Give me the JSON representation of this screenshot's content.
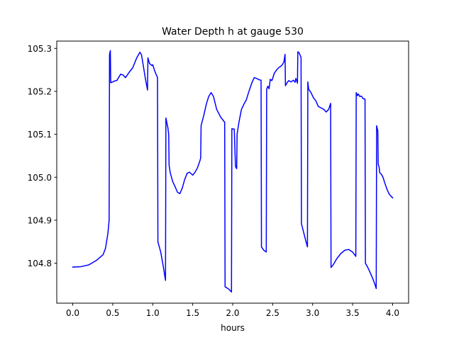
{
  "chart_data": {
    "type": "line",
    "title": "Water Depth h at gauge 530",
    "xlabel": "hours",
    "ylabel": "",
    "xlim": [
      -0.2,
      4.2
    ],
    "ylim": [
      104.707,
      105.317
    ],
    "x_ticks": [
      0.0,
      0.5,
      1.0,
      1.5,
      2.0,
      2.5,
      3.0,
      3.5,
      4.0
    ],
    "x_tick_labels": [
      "0.0",
      "0.5",
      "1.0",
      "1.5",
      "2.0",
      "2.5",
      "3.0",
      "3.5",
      "4.0"
    ],
    "y_ticks": [
      104.8,
      104.9,
      105.0,
      105.1,
      105.2,
      105.3
    ],
    "y_tick_labels": [
      "104.8",
      "104.9",
      "105.0",
      "105.1",
      "105.2",
      "105.3"
    ],
    "grid": false,
    "legend": false,
    "series": [
      {
        "color": "#0000ff",
        "points": [
          [
            0.0,
            104.791
          ],
          [
            0.1,
            104.792
          ],
          [
            0.2,
            104.796
          ],
          [
            0.3,
            104.807
          ],
          [
            0.38,
            104.82
          ],
          [
            0.41,
            104.835
          ],
          [
            0.44,
            104.87
          ],
          [
            0.455,
            104.9
          ],
          [
            0.46,
            105.285
          ],
          [
            0.47,
            105.295
          ],
          [
            0.475,
            105.22
          ],
          [
            0.5,
            105.222
          ],
          [
            0.52,
            105.224
          ],
          [
            0.55,
            105.225
          ],
          [
            0.6,
            105.24
          ],
          [
            0.63,
            105.238
          ],
          [
            0.66,
            105.232
          ],
          [
            0.7,
            105.243
          ],
          [
            0.75,
            105.255
          ],
          [
            0.8,
            105.278
          ],
          [
            0.84,
            105.291
          ],
          [
            0.86,
            105.285
          ],
          [
            0.88,
            105.262
          ],
          [
            0.91,
            105.228
          ],
          [
            0.935,
            105.203
          ],
          [
            0.94,
            105.278
          ],
          [
            0.96,
            105.265
          ],
          [
            0.99,
            105.26
          ],
          [
            1.0,
            105.262
          ],
          [
            1.03,
            105.245
          ],
          [
            1.06,
            105.232
          ],
          [
            1.065,
            104.85
          ],
          [
            1.1,
            104.826
          ],
          [
            1.13,
            104.795
          ],
          [
            1.16,
            104.76
          ],
          [
            1.165,
            105.138
          ],
          [
            1.19,
            105.115
          ],
          [
            1.2,
            105.1
          ],
          [
            1.205,
            105.028
          ],
          [
            1.22,
            105.01
          ],
          [
            1.25,
            104.99
          ],
          [
            1.28,
            104.978
          ],
          [
            1.31,
            104.965
          ],
          [
            1.34,
            104.962
          ],
          [
            1.37,
            104.975
          ],
          [
            1.4,
            104.995
          ],
          [
            1.43,
            105.009
          ],
          [
            1.46,
            105.012
          ],
          [
            1.5,
            105.005
          ],
          [
            1.53,
            105.012
          ],
          [
            1.56,
            105.022
          ],
          [
            1.59,
            105.038
          ],
          [
            1.6,
            105.045
          ],
          [
            1.605,
            105.12
          ],
          [
            1.64,
            105.145
          ],
          [
            1.67,
            105.17
          ],
          [
            1.7,
            105.188
          ],
          [
            1.73,
            105.197
          ],
          [
            1.76,
            105.188
          ],
          [
            1.8,
            105.158
          ],
          [
            1.85,
            105.14
          ],
          [
            1.9,
            105.128
          ],
          [
            1.905,
            104.745
          ],
          [
            1.95,
            104.74
          ],
          [
            1.985,
            104.733
          ],
          [
            1.99,
            105.113
          ],
          [
            2.02,
            105.112
          ],
          [
            2.035,
            105.025
          ],
          [
            2.05,
            105.02
          ],
          [
            2.055,
            105.1
          ],
          [
            2.08,
            105.13
          ],
          [
            2.11,
            105.158
          ],
          [
            2.14,
            105.17
          ],
          [
            2.17,
            105.18
          ],
          [
            2.2,
            105.198
          ],
          [
            2.24,
            105.22
          ],
          [
            2.27,
            105.232
          ],
          [
            2.3,
            105.23
          ],
          [
            2.33,
            105.227
          ],
          [
            2.355,
            105.226
          ],
          [
            2.36,
            104.838
          ],
          [
            2.39,
            104.83
          ],
          [
            2.42,
            104.826
          ],
          [
            2.425,
            105.205
          ],
          [
            2.44,
            105.212
          ],
          [
            2.455,
            105.206
          ],
          [
            2.47,
            105.228
          ],
          [
            2.49,
            105.225
          ],
          [
            2.5,
            105.23
          ],
          [
            2.52,
            105.242
          ],
          [
            2.55,
            105.25
          ],
          [
            2.58,
            105.256
          ],
          [
            2.6,
            105.258
          ],
          [
            2.62,
            105.262
          ],
          [
            2.64,
            105.268
          ],
          [
            2.655,
            105.286
          ],
          [
            2.66,
            105.213
          ],
          [
            2.68,
            105.22
          ],
          [
            2.7,
            105.225
          ],
          [
            2.73,
            105.222
          ],
          [
            2.76,
            105.226
          ],
          [
            2.78,
            105.221
          ],
          [
            2.79,
            105.23
          ],
          [
            2.8,
            105.225
          ],
          [
            2.81,
            105.219
          ],
          [
            2.815,
            105.292
          ],
          [
            2.83,
            105.29
          ],
          [
            2.855,
            105.279
          ],
          [
            2.86,
            104.892
          ],
          [
            2.89,
            104.87
          ],
          [
            2.92,
            104.848
          ],
          [
            2.935,
            104.838
          ],
          [
            2.94,
            105.222
          ],
          [
            2.95,
            105.205
          ],
          [
            2.98,
            105.197
          ],
          [
            3.01,
            105.185
          ],
          [
            3.04,
            105.178
          ],
          [
            3.07,
            105.165
          ],
          [
            3.1,
            105.162
          ],
          [
            3.14,
            105.158
          ],
          [
            3.17,
            105.152
          ],
          [
            3.2,
            105.158
          ],
          [
            3.225,
            105.172
          ],
          [
            3.23,
            104.79
          ],
          [
            3.26,
            104.797
          ],
          [
            3.3,
            104.81
          ],
          [
            3.35,
            104.822
          ],
          [
            3.4,
            104.83
          ],
          [
            3.45,
            104.832
          ],
          [
            3.5,
            104.826
          ],
          [
            3.54,
            104.816
          ],
          [
            3.545,
            105.197
          ],
          [
            3.56,
            105.19
          ],
          [
            3.57,
            105.194
          ],
          [
            3.59,
            105.188
          ],
          [
            3.61,
            105.189
          ],
          [
            3.63,
            105.183
          ],
          [
            3.655,
            105.182
          ],
          [
            3.66,
            104.8
          ],
          [
            3.69,
            104.79
          ],
          [
            3.72,
            104.778
          ],
          [
            3.75,
            104.765
          ],
          [
            3.78,
            104.75
          ],
          [
            3.795,
            104.741
          ],
          [
            3.8,
            105.12
          ],
          [
            3.815,
            105.108
          ],
          [
            3.82,
            105.03
          ],
          [
            3.83,
            105.025
          ],
          [
            3.84,
            105.01
          ],
          [
            3.86,
            105.007
          ],
          [
            3.88,
            105.0
          ],
          [
            3.9,
            104.988
          ],
          [
            3.93,
            104.972
          ],
          [
            3.96,
            104.96
          ],
          [
            4.0,
            104.952
          ]
        ]
      }
    ]
  }
}
